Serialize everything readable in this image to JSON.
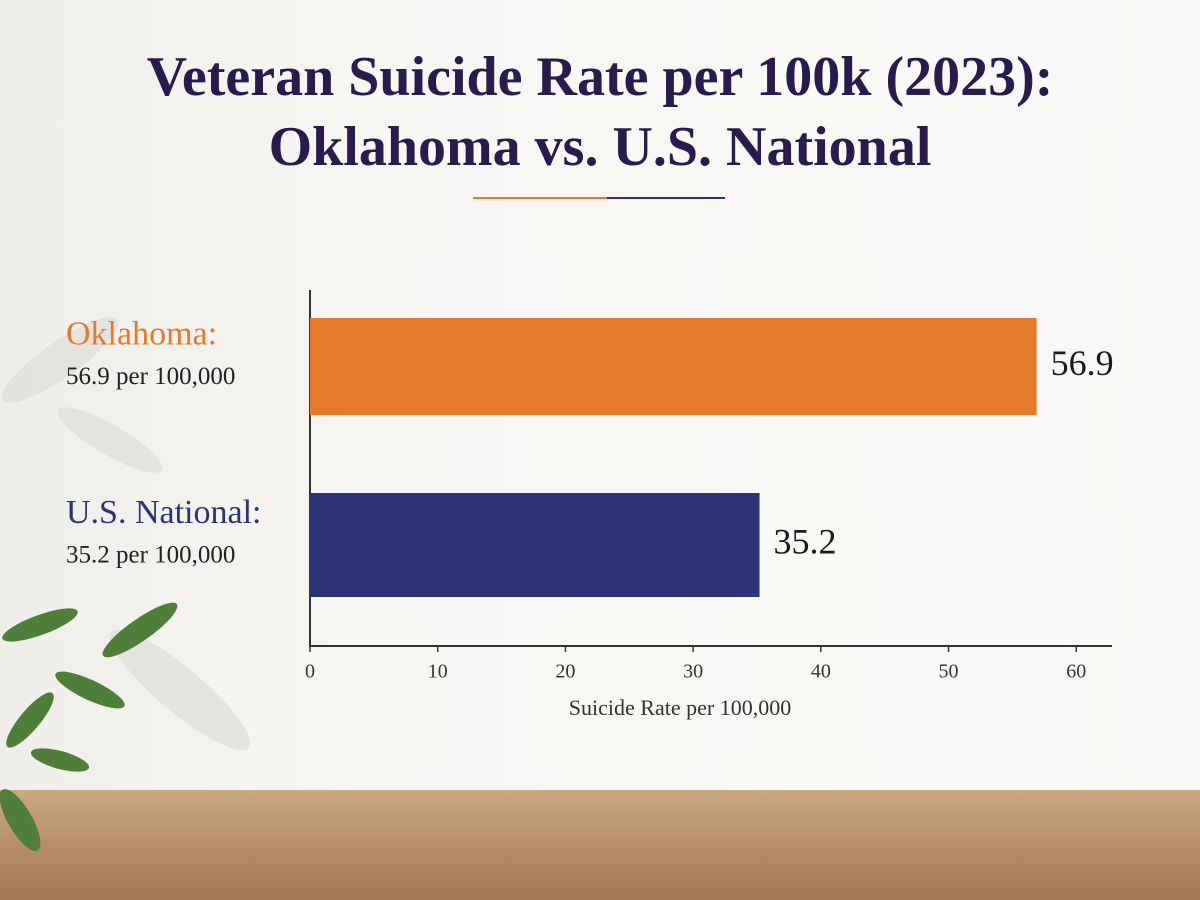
{
  "chart_data": {
    "type": "hbar",
    "title": "Veteran Suicide Rate per 100k (2023):\nOklahoma vs. U.S. National",
    "categories": [
      "Oklahoma:",
      "U.S. National:"
    ],
    "category_notes": [
      "56.9 per 100,000",
      "35.2 per 100,000"
    ],
    "values": [
      56.9,
      35.2
    ],
    "colors": [
      "#e67a2b",
      "#2c3474"
    ],
    "xlim": [
      0,
      62.8
    ],
    "xticks": [
      0,
      10,
      20,
      30,
      40,
      50,
      60
    ],
    "xlabel": "Suicide Rate per 100,000",
    "grid": false
  }
}
